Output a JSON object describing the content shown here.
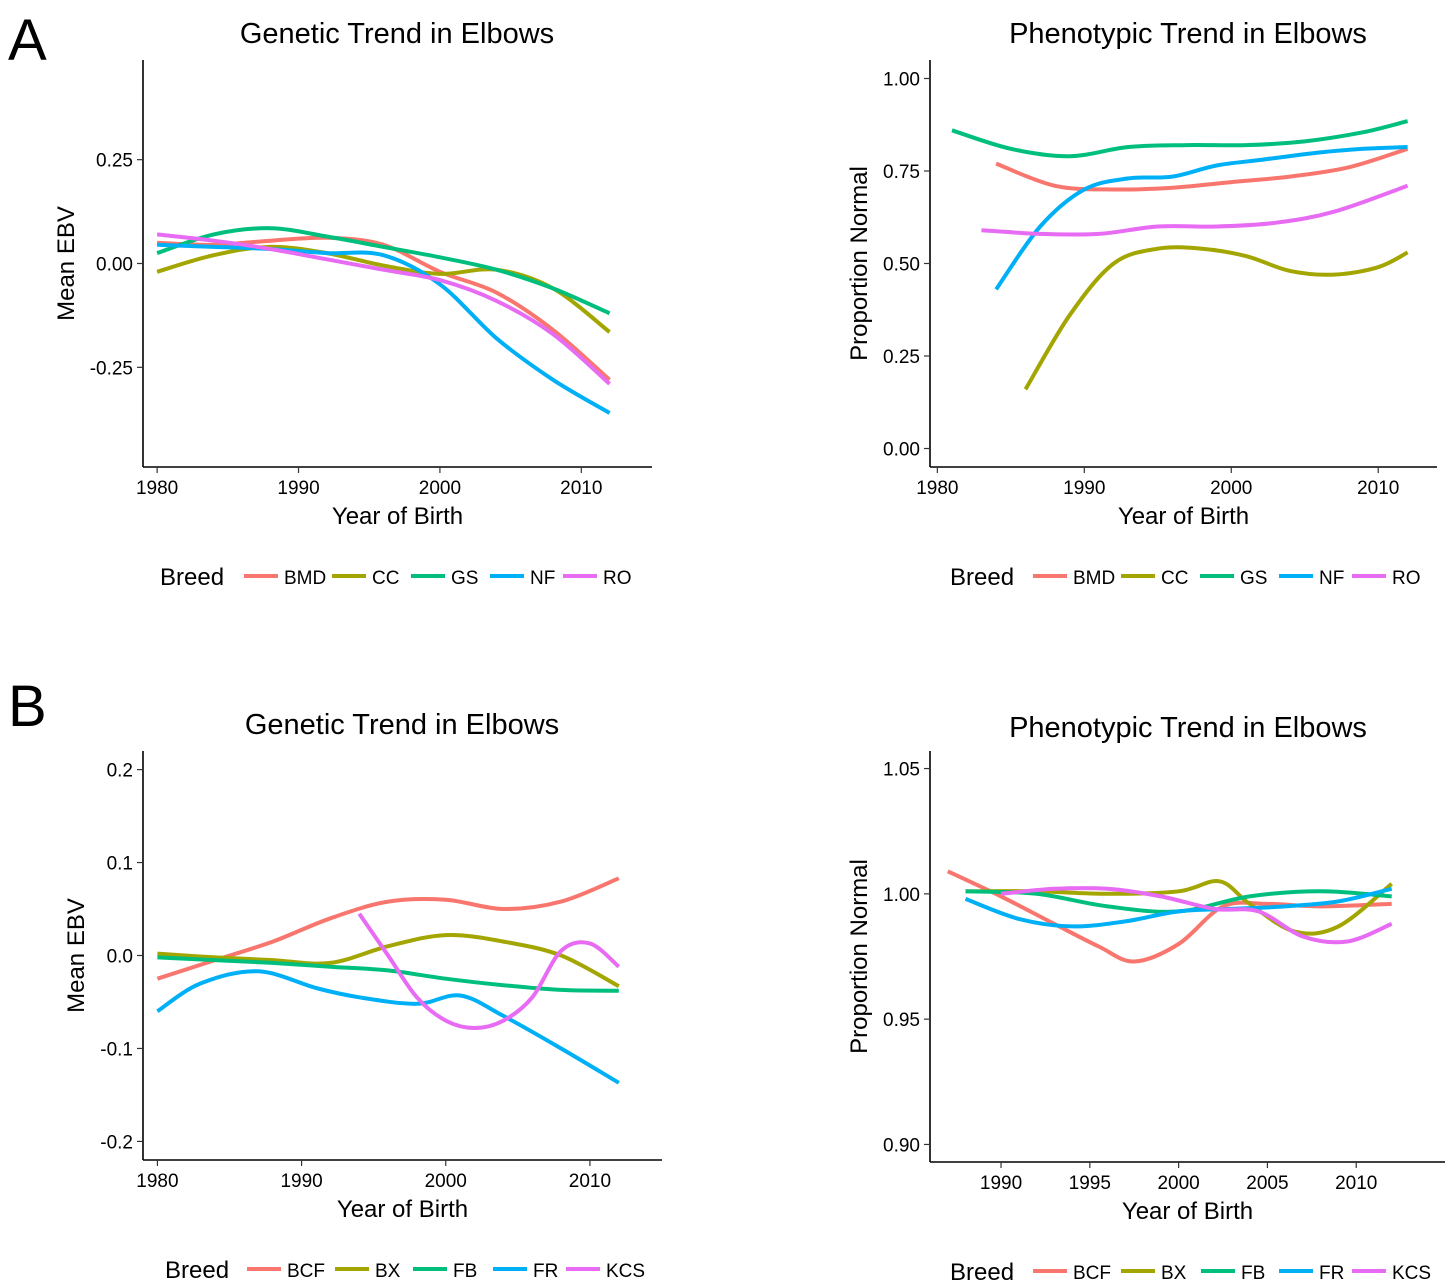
{
  "panel_labels": [
    "A",
    "B"
  ],
  "breed_legend_title": "Breed",
  "colors": {
    "BMD": "#F8766D",
    "CC": "#A3A500",
    "GS": "#00BF7D",
    "NF": "#00B0F6",
    "RO": "#E76BF3",
    "BCF": "#F8766D",
    "BX": "#A3A500",
    "FB": "#00BF7D",
    "FR": "#00B0F6",
    "KCS": "#E76BF3"
  },
  "chart_data": [
    {
      "type": "line",
      "panel": "A",
      "title": "Genetic Trend in Elbows",
      "xlabel": "Year of Birth",
      "ylabel": "Mean EBV",
      "xlim": [
        1979,
        2015
      ],
      "ylim": [
        -0.49,
        0.49
      ],
      "xticks": [
        1980,
        1990,
        2000,
        2010
      ],
      "yticks": [
        0.25,
        0.0,
        -0.25
      ],
      "ytick_labels": [
        "0.25",
        "0.00",
        "-0.25"
      ],
      "grid": false,
      "legend": {
        "title": "Breed",
        "position": "bottom"
      },
      "series": [
        {
          "name": "BMD",
          "x": [
            1980,
            1984,
            1988,
            1992,
            1996,
            2000,
            2004,
            2008,
            2012
          ],
          "y": [
            0.05,
            0.045,
            0.055,
            0.062,
            0.045,
            -0.02,
            -0.07,
            -0.16,
            -0.28
          ]
        },
        {
          "name": "CC",
          "x": [
            1980,
            1984,
            1988,
            1992,
            1996,
            2000,
            2004,
            2008,
            2012
          ],
          "y": [
            -0.02,
            0.02,
            0.04,
            0.025,
            -0.005,
            -0.025,
            -0.015,
            -0.06,
            -0.165
          ]
        },
        {
          "name": "GS",
          "x": [
            1980,
            1984,
            1988,
            1992,
            1996,
            2000,
            2004,
            2008,
            2012
          ],
          "y": [
            0.025,
            0.07,
            0.085,
            0.065,
            0.04,
            0.015,
            -0.015,
            -0.06,
            -0.12
          ]
        },
        {
          "name": "NF",
          "x": [
            1980,
            1984,
            1988,
            1992,
            1996,
            2000,
            2004,
            2008,
            2012
          ],
          "y": [
            0.045,
            0.04,
            0.035,
            0.025,
            0.02,
            -0.05,
            -0.18,
            -0.28,
            -0.36
          ]
        },
        {
          "name": "RO",
          "x": [
            1980,
            1984,
            1988,
            1992,
            1996,
            2000,
            2004,
            2008,
            2012
          ],
          "y": [
            0.07,
            0.055,
            0.035,
            0.01,
            -0.015,
            -0.04,
            -0.09,
            -0.17,
            -0.29
          ]
        }
      ]
    },
    {
      "type": "line",
      "panel": "A",
      "title": "Phenotypic Trend in Elbows",
      "xlabel": "Year of Birth",
      "ylabel": "Proportion Normal",
      "xlim": [
        1979.5,
        2014
      ],
      "ylim": [
        -0.05,
        1.05
      ],
      "xticks": [
        1980,
        1990,
        2000,
        2010
      ],
      "yticks": [
        1.0,
        0.75,
        0.5,
        0.25,
        0.0
      ],
      "ytick_labels": [
        "1.00",
        "0.75",
        "0.50",
        "0.25",
        "0.00"
      ],
      "grid": false,
      "legend": {
        "title": "Breed",
        "position": "bottom"
      },
      "series": [
        {
          "name": "BMD",
          "x": [
            1984,
            1988,
            1992,
            1996,
            2000,
            2004,
            2008,
            2012
          ],
          "y": [
            0.77,
            0.71,
            0.7,
            0.705,
            0.72,
            0.735,
            0.76,
            0.81
          ]
        },
        {
          "name": "CC",
          "x": [
            1986,
            1989,
            1992,
            1995,
            1998,
            2001,
            2004,
            2007,
            2010,
            2012
          ],
          "y": [
            0.16,
            0.36,
            0.5,
            0.54,
            0.54,
            0.52,
            0.48,
            0.47,
            0.49,
            0.53
          ]
        },
        {
          "name": "GS",
          "x": [
            1981,
            1985,
            1989,
            1993,
            1997,
            2001,
            2005,
            2009,
            2012
          ],
          "y": [
            0.86,
            0.81,
            0.79,
            0.815,
            0.82,
            0.82,
            0.83,
            0.855,
            0.885
          ]
        },
        {
          "name": "NF",
          "x": [
            1984,
            1987,
            1990,
            1993,
            1996,
            1999,
            2002,
            2006,
            2009,
            2012
          ],
          "y": [
            0.43,
            0.6,
            0.7,
            0.73,
            0.735,
            0.765,
            0.78,
            0.8,
            0.81,
            0.815
          ]
        },
        {
          "name": "RO",
          "x": [
            1983,
            1987,
            1991,
            1995,
            1999,
            2003,
            2007,
            2012
          ],
          "y": [
            0.59,
            0.58,
            0.58,
            0.6,
            0.6,
            0.61,
            0.64,
            0.71
          ]
        }
      ]
    },
    {
      "type": "line",
      "panel": "B",
      "title": "Genetic Trend in Elbows",
      "xlabel": "Year of Birth",
      "ylabel": "Mean EBV",
      "xlim": [
        1979,
        2015
      ],
      "ylim": [
        -0.22,
        0.22
      ],
      "xticks": [
        1980,
        1990,
        2000,
        2010
      ],
      "yticks": [
        0.2,
        0.1,
        0.0,
        -0.1,
        -0.2
      ],
      "ytick_labels": [
        "0.2",
        "0.1",
        "0.0",
        "-0.1",
        "-0.2"
      ],
      "grid": false,
      "legend": {
        "title": "Breed",
        "position": "bottom"
      },
      "series": [
        {
          "name": "BCF",
          "x": [
            1980,
            1984,
            1988,
            1992,
            1996,
            2000,
            2004,
            2008,
            2012
          ],
          "y": [
            -0.025,
            -0.005,
            0.015,
            0.04,
            0.058,
            0.06,
            0.05,
            0.058,
            0.083
          ]
        },
        {
          "name": "BX",
          "x": [
            1980,
            1984,
            1988,
            1992,
            1996,
            2000,
            2004,
            2008,
            2012
          ],
          "y": [
            0.002,
            -0.002,
            -0.005,
            -0.008,
            0.01,
            0.022,
            0.015,
            0.0,
            -0.033
          ]
        },
        {
          "name": "FB",
          "x": [
            1980,
            1984,
            1988,
            1992,
            1996,
            2000,
            2004,
            2008,
            2012
          ],
          "y": [
            -0.002,
            -0.005,
            -0.008,
            -0.012,
            -0.016,
            -0.025,
            -0.032,
            -0.037,
            -0.038
          ]
        },
        {
          "name": "FR",
          "x": [
            1980,
            1983,
            1987,
            1991,
            1994,
            1998,
            2001,
            2004,
            2008,
            2012
          ],
          "y": [
            -0.06,
            -0.03,
            -0.017,
            -0.035,
            -0.045,
            -0.052,
            -0.043,
            -0.065,
            -0.1,
            -0.137
          ]
        },
        {
          "name": "KCS",
          "x": [
            1994,
            1996,
            1998,
            2000,
            2002,
            2004,
            2006,
            2008,
            2010,
            2012
          ],
          "y": [
            0.045,
            0.0,
            -0.045,
            -0.07,
            -0.078,
            -0.07,
            -0.045,
            0.005,
            0.013,
            -0.012
          ]
        }
      ]
    },
    {
      "type": "line",
      "panel": "B",
      "title": "Phenotypic Trend in Elbows",
      "xlabel": "Year of Birth",
      "ylabel": "Proportion Normal",
      "xlim": [
        1986,
        2015
      ],
      "ylim": [
        0.893,
        1.057
      ],
      "xticks": [
        1990,
        1995,
        2000,
        2005,
        2010
      ],
      "yticks": [
        1.05,
        1.0,
        0.95,
        0.9
      ],
      "ytick_labels": [
        "1.05",
        "1.00",
        "0.95",
        "0.90"
      ],
      "grid": false,
      "legend": {
        "title": "Breed",
        "position": "bottom"
      },
      "series": [
        {
          "name": "BCF",
          "x": [
            1987,
            1990,
            1993,
            1995.5,
            1997.5,
            2000,
            2002.5,
            2005,
            2008,
            2012
          ],
          "y": [
            1.009,
            0.999,
            0.988,
            0.979,
            0.973,
            0.98,
            0.995,
            0.996,
            0.995,
            0.996
          ]
        },
        {
          "name": "BX",
          "x": [
            1988,
            1992,
            1996,
            2000,
            2002.3,
            2004,
            2006.5,
            2009,
            2012
          ],
          "y": [
            1.001,
            1.001,
            1.0,
            1.001,
            1.005,
            0.996,
            0.985,
            0.987,
            1.004
          ]
        },
        {
          "name": "FB",
          "x": [
            1988,
            1992,
            1996,
            2000,
            2004,
            2008,
            2012
          ],
          "y": [
            1.001,
            1.0,
            0.995,
            0.993,
            0.999,
            1.001,
            0.999
          ]
        },
        {
          "name": "FR",
          "x": [
            1988,
            1991,
            1994,
            1997,
            2000,
            2003,
            2006,
            2009,
            2012
          ],
          "y": [
            0.998,
            0.99,
            0.987,
            0.989,
            0.993,
            0.994,
            0.995,
            0.997,
            1.002
          ]
        },
        {
          "name": "KCS",
          "x": [
            1990,
            1993,
            1996,
            1999,
            2002,
            2004.5,
            2007,
            2009.5,
            2012
          ],
          "y": [
            1.0,
            1.002,
            1.002,
            0.999,
            0.994,
            0.993,
            0.983,
            0.981,
            0.988
          ]
        }
      ]
    }
  ]
}
